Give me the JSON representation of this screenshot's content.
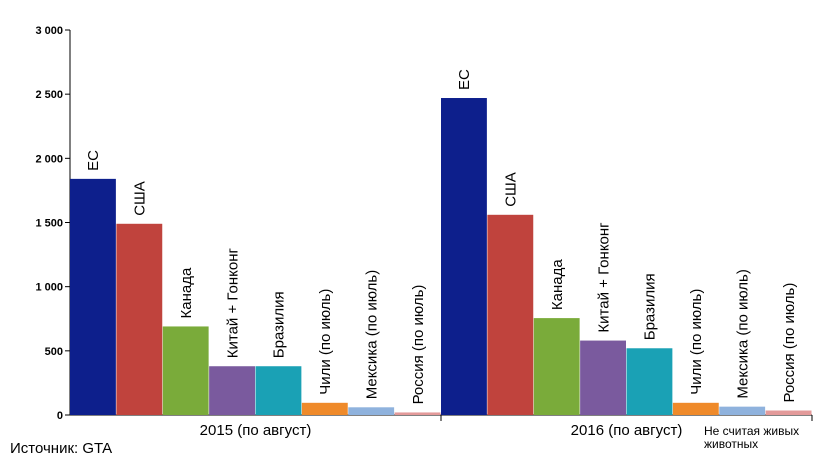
{
  "chart_data": {
    "type": "bar",
    "title": "",
    "xlabel": "",
    "ylabel": "",
    "ylim": [
      0,
      3000
    ],
    "yticks": [
      0,
      500,
      1000,
      1500,
      2000,
      2500,
      3000
    ],
    "ytick_labels": [
      "0",
      "500",
      "1 000",
      "1 500",
      "2 000",
      "2 500",
      "3 000"
    ],
    "grid": false,
    "groups": [
      {
        "label": "2015 (по август)",
        "bars": [
          {
            "name": "ЕС",
            "value": 1840,
            "color": "#0d1f8c"
          },
          {
            "name": "США",
            "value": 1490,
            "color": "#c0433d"
          },
          {
            "name": "Канада",
            "value": 690,
            "color": "#7aab3a"
          },
          {
            "name": "Китай + Гонконг",
            "value": 380,
            "color": "#7a5a9e"
          },
          {
            "name": "Бразилия",
            "value": 380,
            "color": "#1aa1b5"
          },
          {
            "name": "Чили (по июль)",
            "value": 95,
            "color": "#ef8a2a"
          },
          {
            "name": "Мексика (по июль)",
            "value": 60,
            "color": "#8fb2dd"
          },
          {
            "name": "Россия (по июль)",
            "value": 20,
            "color": "#e39a9a"
          }
        ]
      },
      {
        "label": "2016 (по август)",
        "bars": [
          {
            "name": "ЕС",
            "value": 2470,
            "color": "#0d1f8c"
          },
          {
            "name": "США",
            "value": 1560,
            "color": "#c0433d"
          },
          {
            "name": "Канада",
            "value": 755,
            "color": "#7aab3a"
          },
          {
            "name": "Китай + Гонконг",
            "value": 580,
            "color": "#7a5a9e"
          },
          {
            "name": "Бразилия",
            "value": 520,
            "color": "#1aa1b5"
          },
          {
            "name": "Чили (по июль)",
            "value": 95,
            "color": "#ef8a2a"
          },
          {
            "name": "Мексика (по июль)",
            "value": 65,
            "color": "#8fb2dd"
          },
          {
            "name": "Россия (по июль)",
            "value": 35,
            "color": "#e39a9a"
          }
        ]
      }
    ]
  },
  "note": {
    "line1": "Не считая живых",
    "line2": "животных"
  },
  "source": "Источник: GTA"
}
